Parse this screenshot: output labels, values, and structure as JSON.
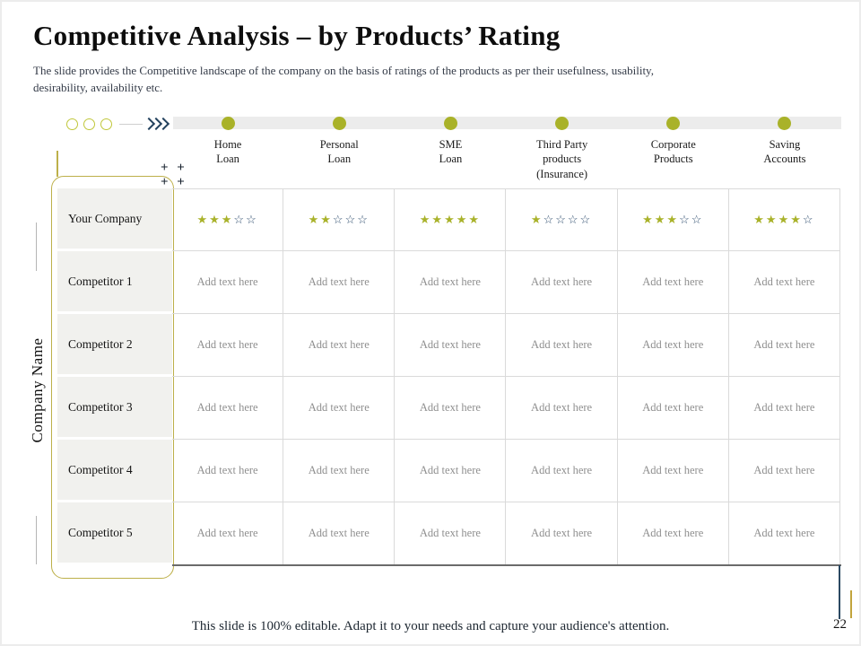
{
  "slide": {
    "title": "Competitive Analysis – by Products’ Rating",
    "subtitle": "The slide provides  the Competitive  landscape  of the company  on the basis  of ratings  of the products  as per  their  usefulness,  usability,\ndesirability,  availability  etc.",
    "footer": "This slide is 100% editable. Adapt it to your needs and capture your audience's attention.",
    "page_number": "22",
    "side_label": "Company Name",
    "plus_marks": "+ +\n+ +"
  },
  "icons": {
    "star_filled": "★",
    "star_empty": "☆",
    "circle": "timeline-marker-circle",
    "chevrons": "triple-chevron-right"
  },
  "colors": {
    "accent_olive": "#a9b229",
    "accent_gold": "#bdb04a",
    "accent_navy": "#2c4a63",
    "bar_gray": "#ececec",
    "label_bg": "#f1f1ee",
    "placeholder_text": "#8f8f8f"
  },
  "table": {
    "columns": [
      "Home\nLoan",
      "Personal\nLoan",
      "SME\nLoan",
      "Third Party\nproducts\n(Insurance)",
      "Corporate\nProducts",
      "Saving\nAccounts"
    ],
    "max_rating": 5,
    "placeholder": "Add text here",
    "rows": [
      {
        "label": "Your Company",
        "type": "rating",
        "ratings": [
          3,
          2,
          5,
          1,
          3,
          4
        ]
      },
      {
        "label": "Competitor 1",
        "type": "text"
      },
      {
        "label": "Competitor 2",
        "type": "text"
      },
      {
        "label": "Competitor 3",
        "type": "text"
      },
      {
        "label": "Competitor 4",
        "type": "text"
      },
      {
        "label": "Competitor 5",
        "type": "text"
      }
    ]
  }
}
